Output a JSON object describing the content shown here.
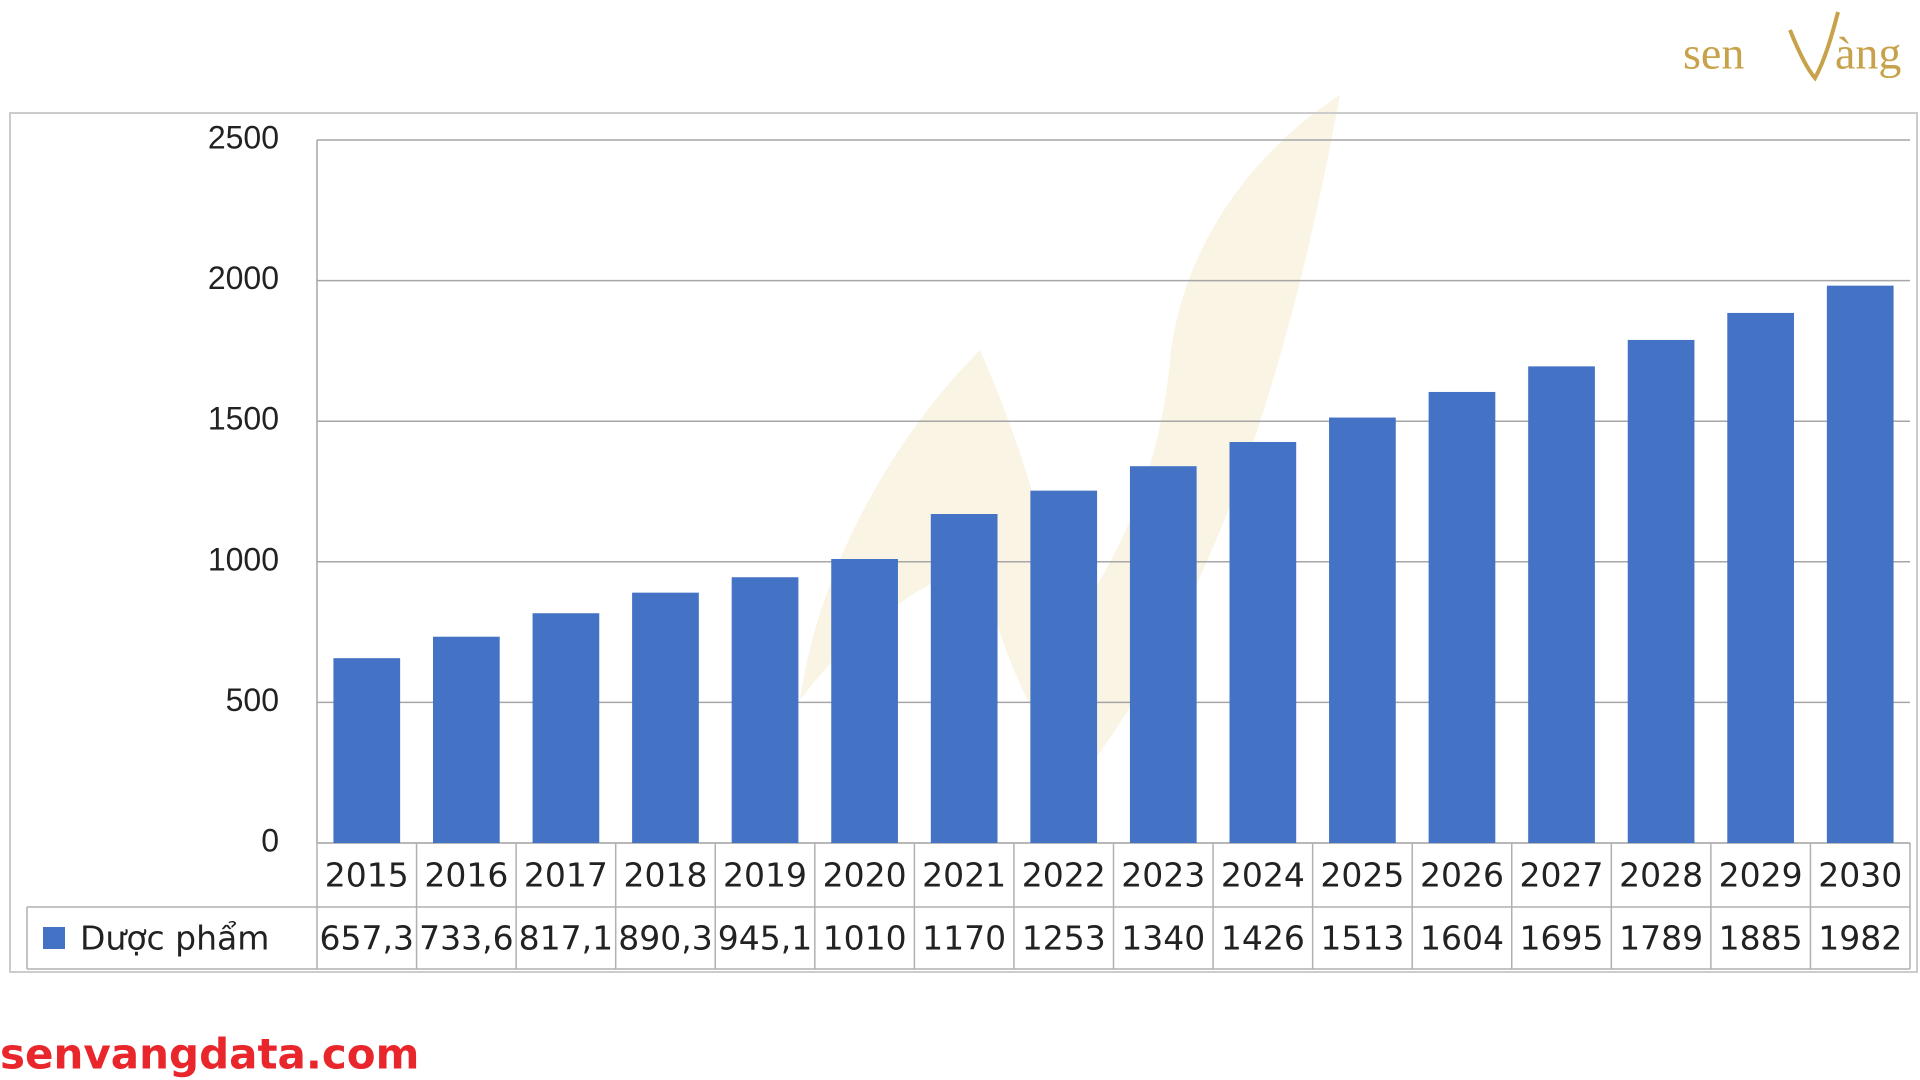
{
  "chart_data": {
    "type": "bar",
    "categories": [
      "2015",
      "2016",
      "2017",
      "2018",
      "2019",
      "2020",
      "2021",
      "2022",
      "2023",
      "2024",
      "2025",
      "2026",
      "2027",
      "2028",
      "2029",
      "2030"
    ],
    "series": [
      {
        "name": "Dược phẩm",
        "color": "#4472c4",
        "values": [
          657.3,
          733.6,
          817.1,
          890.3,
          945.1,
          1010,
          1170,
          1253,
          1340,
          1426,
          1513,
          1604,
          1695,
          1789,
          1885,
          1982
        ],
        "value_labels": [
          "657,3",
          "733,6",
          "817,1",
          "890,3",
          "945,1",
          "1010",
          "1170",
          "1253",
          "1340",
          "1426",
          "1513",
          "1604",
          "1695",
          "1789",
          "1885",
          "1982"
        ]
      }
    ],
    "ylim": [
      0,
      2500
    ],
    "yticks": [
      0,
      500,
      1000,
      1500,
      2000,
      2500
    ],
    "grid": true
  },
  "logo": {
    "left": "sen",
    "right": "àng"
  },
  "footer": "senvangdata.com"
}
